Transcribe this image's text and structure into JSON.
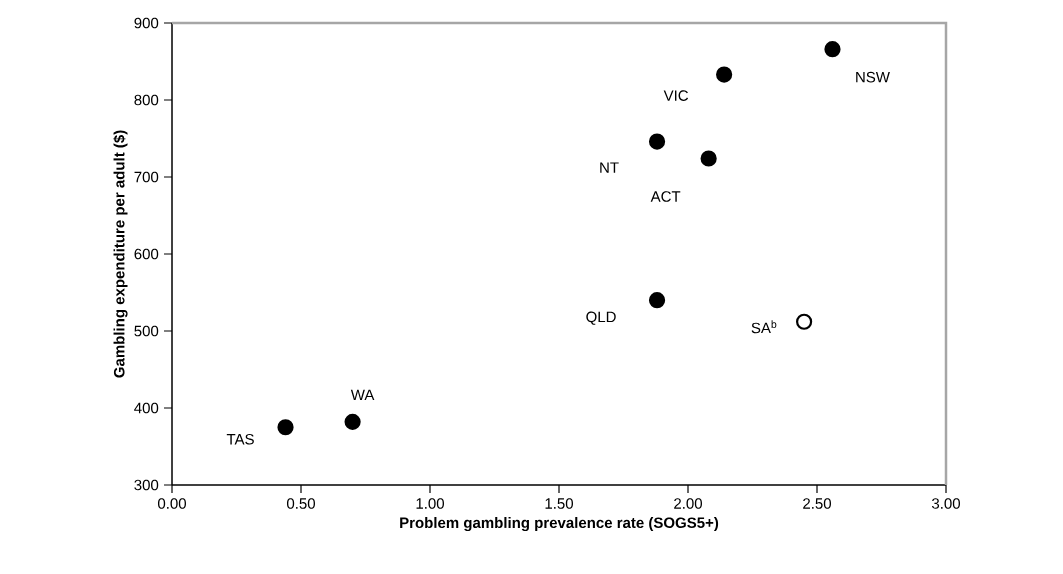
{
  "chart_data": {
    "type": "scatter",
    "xlabel": "Problem gambling prevalence rate (SOGS5+)",
    "ylabel": "Gambling expenditure per adult ($)",
    "x": [
      0.44,
      0.7,
      1.88,
      2.45,
      1.88,
      2.08,
      2.14,
      2.56
    ],
    "series": [
      {
        "values": [
          375,
          382,
          540,
          512,
          746,
          724,
          833,
          866
        ],
        "colors": [
          "#000000",
          "#000000",
          "#000000",
          "#ffffff",
          "#000000",
          "#000000",
          "#000000",
          "#000000"
        ]
      }
    ],
    "xlim": [
      0,
      3
    ],
    "ylim": [
      300,
      900
    ],
    "xticks": [
      {
        "value": 0,
        "label": "0.00"
      },
      {
        "value": 0.5,
        "label": "0.50"
      },
      {
        "value": 1,
        "label": "1.00"
      },
      {
        "value": 1.5,
        "label": "1.50"
      },
      {
        "value": 2,
        "label": "2.00"
      },
      {
        "value": 2.5,
        "label": "2.50"
      },
      {
        "value": 3,
        "label": "3.00"
      }
    ],
    "yticks": [
      300,
      400,
      500,
      600,
      700,
      800,
      900
    ],
    "annotations": [
      {
        "text": "TAS",
        "x": 0.44,
        "y": 375
      },
      {
        "text": "WA",
        "x": 0.7,
        "y": 382
      },
      {
        "text": "QLD",
        "x": 1.88,
        "y": 540
      },
      {
        "text": "SA$^{b}$",
        "x": 2.45,
        "y": 512
      },
      {
        "text": "NT",
        "x": 1.88,
        "y": 746
      },
      {
        "text": "ACT",
        "x": 2.08,
        "y": 724
      },
      {
        "text": "VIC",
        "x": 2.14,
        "y": 833
      },
      {
        "text": "NSW",
        "x": 2.56,
        "y": 866
      }
    ]
  }
}
